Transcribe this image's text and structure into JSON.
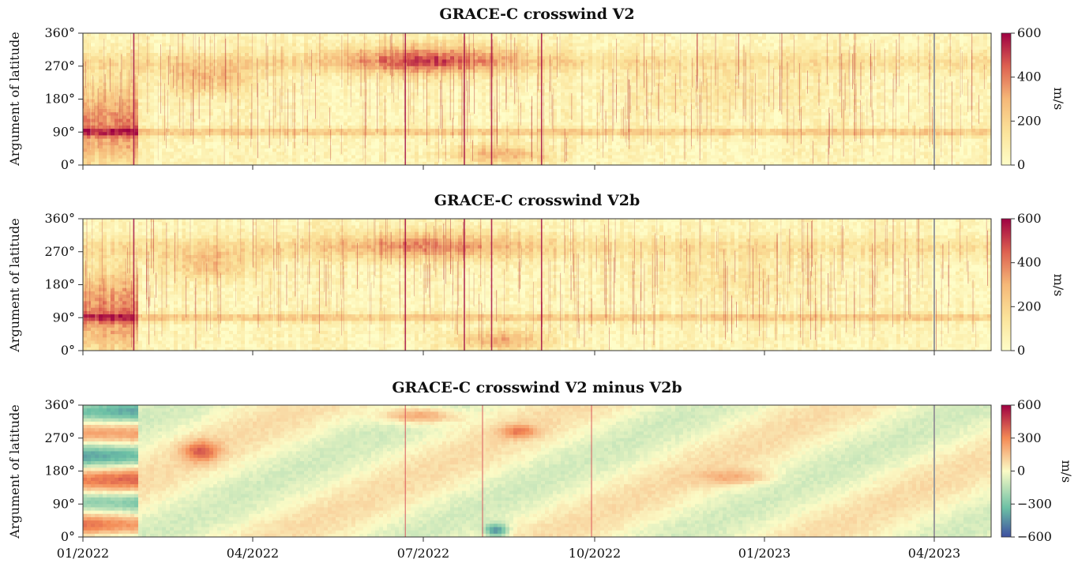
{
  "chart_data": [
    {
      "type": "heatmap",
      "title": "GRACE-C crosswind V2",
      "ylabel": "Argument of latitude",
      "yticks": [
        "0°",
        "90°",
        "180°",
        "270°",
        "360°"
      ],
      "ylim": [
        0,
        360
      ],
      "xlim": [
        "2022-01-01",
        "2023-05-10"
      ],
      "xticks": [],
      "colormap": "Spectral_r (yellow to dark red)",
      "colorbar": {
        "label": "m/s",
        "ticks": [
          "0",
          "200",
          "400",
          "600"
        ],
        "range": [
          0,
          600
        ]
      },
      "features": [
        "band near 90° argument of latitude",
        "strong winds 270°–360° in Jun–Aug 2022",
        "vertical line at 04/2023"
      ]
    },
    {
      "type": "heatmap",
      "title": "GRACE-C crosswind V2b",
      "ylabel": "Argument of latitude",
      "yticks": [
        "0°",
        "90°",
        "180°",
        "270°",
        "360°"
      ],
      "ylim": [
        0,
        360
      ],
      "xlim": [
        "2022-01-01",
        "2023-05-10"
      ],
      "xticks": [],
      "colormap": "Spectral_r (yellow to dark red)",
      "colorbar": {
        "label": "m/s",
        "ticks": [
          "0",
          "200",
          "400",
          "600"
        ],
        "range": [
          0,
          600
        ]
      },
      "features": [
        "band near 90° argument of latitude",
        "strong winds 270°–360° in Jun–Aug 2022",
        "vertical line at 04/2023"
      ]
    },
    {
      "type": "heatmap",
      "title": "GRACE-C crosswind V2 minus V2b",
      "ylabel": "Argument of latitude",
      "yticks": [
        "0°",
        "90°",
        "180°",
        "270°",
        "360°"
      ],
      "ylim": [
        0,
        360
      ],
      "xlim": [
        "2022-01-01",
        "2023-05-10"
      ],
      "xticks": [
        "01/2022",
        "04/2022",
        "07/2022",
        "10/2022",
        "01/2023",
        "04/2023"
      ],
      "colormap": "Spectral_r diverging (blue-yellow-red)",
      "colorbar": {
        "label": "m/s",
        "ticks": [
          "−600",
          "−300",
          "0",
          "300",
          "600"
        ],
        "range": [
          -600,
          600
        ]
      },
      "features": [
        "diagonal drifting bands",
        "vertical line at 04/2023"
      ]
    }
  ],
  "colors": {
    "seq_low": "#fdf8c4",
    "seq_mid": "#f5b878",
    "seq_high": "#9e0142",
    "div_low": "#3e4fa0",
    "div_mid": "#fbfbc6",
    "div_high": "#9e0142",
    "marker_line": "#9a9a9a"
  }
}
